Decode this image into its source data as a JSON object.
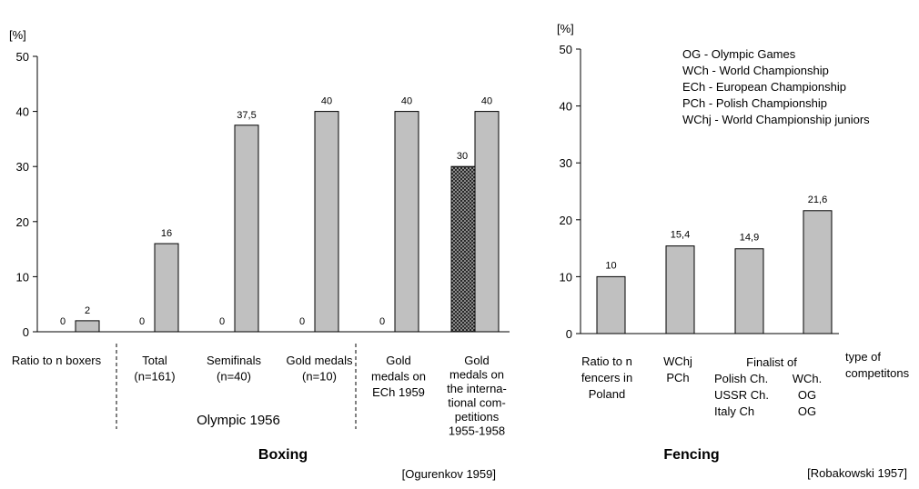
{
  "chart_data": [
    {
      "type": "bar",
      "title": "Boxing",
      "source": "[Ogurenkov 1959]",
      "ylabel": "[%]",
      "ylim": [
        0,
        50
      ],
      "yticks": [
        "0",
        "10",
        "20",
        "30",
        "40",
        "50"
      ],
      "grid": false,
      "categories": [
        {
          "label": [
            "Ratio to n boxers"
          ]
        },
        {
          "label": [
            "Total",
            "(n=161)"
          ]
        },
        {
          "label": [
            "Semifinals",
            "(n=40)"
          ]
        },
        {
          "label": [
            "Gold medals",
            "(n=10)"
          ]
        },
        {
          "label": [
            "Gold",
            "medals on",
            "ECh 1959"
          ]
        },
        {
          "label": [
            "Gold",
            "medals on",
            "the interna-",
            "tional com-",
            "petitions",
            "1955-1958"
          ]
        }
      ],
      "group_label": "Olympic 1956",
      "series": [
        {
          "values": [
            0,
            0,
            0,
            0,
            0,
            30
          ],
          "labels": [
            "0",
            "0",
            "0",
            "0",
            "0",
            "30"
          ],
          "color": "#444444",
          "pattern": "dotted"
        },
        {
          "values": [
            2,
            16,
            37.5,
            40,
            40,
            40
          ],
          "labels": [
            "2",
            "16",
            "37,5",
            "40",
            "40",
            "40"
          ],
          "color": "#c0c0c0"
        }
      ]
    },
    {
      "type": "bar",
      "title": "Fencing",
      "source": "[Robakowski 1957]",
      "ylabel": "[%]",
      "ylim": [
        0,
        50
      ],
      "yticks": [
        "0",
        "10",
        "20",
        "30",
        "40",
        "50"
      ],
      "grid": false,
      "xlabel": [
        "type of",
        "competitons"
      ],
      "categories": [
        {
          "label": [
            "Ratio to n",
            "fencers in",
            "Poland"
          ]
        },
        {
          "label": [
            "WChj",
            "PCh"
          ]
        },
        {
          "label": [
            "Polish Ch.",
            "USSR Ch.",
            "Italy Ch"
          ]
        },
        {
          "label": [
            "WCh.",
            "OG",
            "OG"
          ]
        }
      ],
      "group_label": "Finalist of",
      "series": [
        {
          "values": [
            10,
            15.4,
            14.9,
            21.6
          ],
          "labels": [
            "10",
            "15,4",
            "14,9",
            "21,6"
          ],
          "color": "#c0c0c0"
        }
      ],
      "legend": [
        "OG - Olympic Games",
        "WCh - World Championship",
        "ECh - European Championship",
        "PCh - Polish Championship",
        "WChj - World Championship juniors"
      ]
    }
  ]
}
